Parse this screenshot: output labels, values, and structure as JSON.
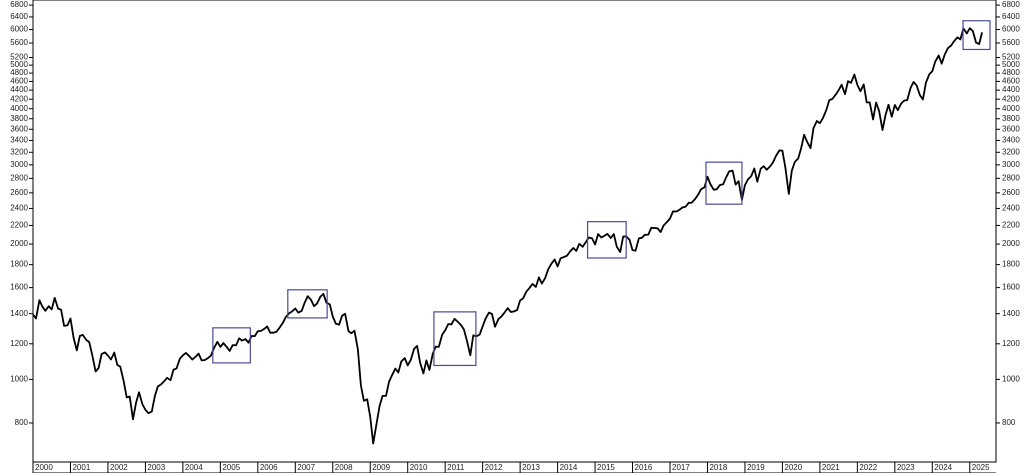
{
  "chart_data": {
    "type": "line",
    "log_y": true,
    "color": "#000000",
    "highlight_color": "#4a4a9a",
    "x": [
      2000.0,
      2000.08,
      2000.17,
      2000.25,
      2000.33,
      2000.42,
      2000.5,
      2000.58,
      2000.67,
      2000.75,
      2000.83,
      2000.92,
      2001.0,
      2001.08,
      2001.17,
      2001.25,
      2001.33,
      2001.42,
      2001.5,
      2001.58,
      2001.67,
      2001.75,
      2001.83,
      2001.92,
      2002.0,
      2002.08,
      2002.17,
      2002.25,
      2002.33,
      2002.42,
      2002.5,
      2002.58,
      2002.67,
      2002.75,
      2002.83,
      2002.92,
      2003.0,
      2003.08,
      2003.17,
      2003.25,
      2003.33,
      2003.42,
      2003.5,
      2003.58,
      2003.67,
      2003.75,
      2003.83,
      2003.92,
      2004.0,
      2004.08,
      2004.17,
      2004.25,
      2004.33,
      2004.42,
      2004.5,
      2004.58,
      2004.67,
      2004.75,
      2004.83,
      2004.92,
      2005.0,
      2005.08,
      2005.17,
      2005.25,
      2005.33,
      2005.42,
      2005.5,
      2005.58,
      2005.67,
      2005.75,
      2005.83,
      2005.92,
      2006.0,
      2006.08,
      2006.17,
      2006.25,
      2006.33,
      2006.42,
      2006.5,
      2006.58,
      2006.67,
      2006.75,
      2006.83,
      2006.92,
      2007.0,
      2007.08,
      2007.17,
      2007.25,
      2007.33,
      2007.42,
      2007.5,
      2007.58,
      2007.67,
      2007.75,
      2007.83,
      2007.92,
      2008.0,
      2008.08,
      2008.17,
      2008.25,
      2008.33,
      2008.42,
      2008.5,
      2008.58,
      2008.67,
      2008.75,
      2008.83,
      2008.92,
      2009.0,
      2009.08,
      2009.17,
      2009.25,
      2009.33,
      2009.42,
      2009.5,
      2009.58,
      2009.67,
      2009.75,
      2009.83,
      2009.92,
      2010.0,
      2010.08,
      2010.17,
      2010.25,
      2010.33,
      2010.42,
      2010.5,
      2010.58,
      2010.67,
      2010.75,
      2010.83,
      2010.92,
      2011.0,
      2011.08,
      2011.17,
      2011.25,
      2011.33,
      2011.42,
      2011.5,
      2011.58,
      2011.67,
      2011.75,
      2011.83,
      2011.92,
      2012.0,
      2012.08,
      2012.17,
      2012.25,
      2012.33,
      2012.42,
      2012.5,
      2012.58,
      2012.67,
      2012.75,
      2012.83,
      2012.92,
      2013.0,
      2013.08,
      2013.17,
      2013.25,
      2013.33,
      2013.42,
      2013.5,
      2013.58,
      2013.67,
      2013.75,
      2013.83,
      2013.92,
      2014.0,
      2014.08,
      2014.17,
      2014.25,
      2014.33,
      2014.42,
      2014.5,
      2014.58,
      2014.67,
      2014.75,
      2014.83,
      2014.92,
      2015.0,
      2015.08,
      2015.17,
      2015.25,
      2015.33,
      2015.42,
      2015.5,
      2015.58,
      2015.67,
      2015.75,
      2015.83,
      2015.92,
      2016.0,
      2016.08,
      2016.17,
      2016.25,
      2016.33,
      2016.42,
      2016.5,
      2016.58,
      2016.67,
      2016.75,
      2016.83,
      2016.92,
      2017.0,
      2017.08,
      2017.17,
      2017.25,
      2017.33,
      2017.42,
      2017.5,
      2017.58,
      2017.67,
      2017.75,
      2017.83,
      2017.92,
      2018.0,
      2018.08,
      2018.17,
      2018.25,
      2018.33,
      2018.42,
      2018.5,
      2018.58,
      2018.67,
      2018.75,
      2018.83,
      2018.92,
      2019.0,
      2019.08,
      2019.17,
      2019.25,
      2019.33,
      2019.42,
      2019.5,
      2019.58,
      2019.67,
      2019.75,
      2019.83,
      2019.92,
      2020.0,
      2020.08,
      2020.17,
      2020.25,
      2020.33,
      2020.42,
      2020.5,
      2020.58,
      2020.67,
      2020.75,
      2020.83,
      2020.92,
      2021.0,
      2021.08,
      2021.17,
      2021.25,
      2021.33,
      2021.42,
      2021.5,
      2021.58,
      2021.67,
      2021.75,
      2021.83,
      2021.92,
      2022.0,
      2022.08,
      2022.17,
      2022.25,
      2022.33,
      2022.42,
      2022.5,
      2022.58,
      2022.67,
      2022.75,
      2022.83,
      2022.92,
      2023.0,
      2023.08,
      2023.17,
      2023.25,
      2023.33,
      2023.42,
      2023.5,
      2023.58,
      2023.67,
      2023.75,
      2023.83,
      2023.92,
      2024.0,
      2024.08,
      2024.17,
      2024.25,
      2024.33,
      2024.42,
      2024.5,
      2024.58,
      2024.67,
      2024.75,
      2024.83,
      2024.92,
      2025.0,
      2025.08,
      2025.17,
      2025.25,
      2025.33
    ],
    "values": [
      1394,
      1366,
      1499,
      1452,
      1421,
      1455,
      1431,
      1518,
      1437,
      1429,
      1315,
      1320,
      1366,
      1240,
      1160,
      1249,
      1256,
      1224,
      1211,
      1134,
      1041,
      1060,
      1139,
      1148,
      1130,
      1107,
      1147,
      1077,
      1067,
      990,
      912,
      916,
      815,
      886,
      936,
      880,
      856,
      841,
      848,
      917,
      964,
      975,
      990,
      1008,
      996,
      1051,
      1058,
      1112,
      1131,
      1145,
      1126,
      1107,
      1121,
      1141,
      1102,
      1104,
      1115,
      1130,
      1174,
      1212,
      1181,
      1204,
      1181,
      1157,
      1192,
      1191,
      1234,
      1220,
      1229,
      1207,
      1249,
      1248,
      1280,
      1281,
      1295,
      1311,
      1270,
      1270,
      1277,
      1304,
      1336,
      1378,
      1401,
      1418,
      1438,
      1407,
      1421,
      1482,
      1531,
      1503,
      1455,
      1474,
      1527,
      1549,
      1481,
      1468,
      1379,
      1331,
      1323,
      1386,
      1400,
      1280,
      1267,
      1283,
      1165,
      969,
      896,
      903,
      826,
      720,
      798,
      873,
      919,
      919,
      987,
      1021,
      1057,
      1036,
      1096,
      1115,
      1074,
      1104,
      1169,
      1187,
      1089,
      1031,
      1102,
      1049,
      1141,
      1183,
      1181,
      1258,
      1286,
      1327,
      1326,
      1364,
      1345,
      1321,
      1292,
      1219,
      1131,
      1253,
      1247,
      1258,
      1312,
      1366,
      1408,
      1398,
      1310,
      1362,
      1379,
      1407,
      1441,
      1412,
      1416,
      1426,
      1498,
      1515,
      1569,
      1598,
      1631,
      1606,
      1686,
      1633,
      1682,
      1757,
      1806,
      1848,
      1783,
      1859,
      1872,
      1884,
      1924,
      1960,
      1931,
      2003,
      1972,
      2018,
      2068,
      2059,
      1995,
      2105,
      2068,
      2086,
      2107,
      2063,
      2104,
      1972,
      1920,
      2079,
      2080,
      2044,
      1940,
      1932,
      2060,
      2065,
      2097,
      2099,
      2174,
      2171,
      2168,
      2126,
      2199,
      2239,
      2279,
      2364,
      2363,
      2384,
      2412,
      2423,
      2470,
      2472,
      2519,
      2575,
      2648,
      2674,
      2824,
      2714,
      2641,
      2648,
      2705,
      2718,
      2816,
      2902,
      2914,
      2712,
      2760,
      2507,
      2704,
      2784,
      2834,
      2946,
      2752,
      2942,
      2980,
      2926,
      2977,
      3038,
      3141,
      3231,
      3226,
      2954,
      2585,
      2912,
      3044,
      3100,
      3271,
      3500,
      3363,
      3270,
      3622,
      3756,
      3714,
      3811,
      3973,
      4181,
      4204,
      4298,
      4395,
      4523,
      4308,
      4605,
      4567,
      4766,
      4516,
      4374,
      4530,
      4132,
      4132,
      3785,
      4130,
      3955,
      3586,
      3872,
      4080,
      3840,
      4077,
      3970,
      4109,
      4169,
      4180,
      4450,
      4589,
      4508,
      4288,
      4194,
      4568,
      4770,
      4846,
      5096,
      5254,
      5036,
      5278,
      5460,
      5522,
      5648,
      5762,
      5705,
      6032,
      5882,
      6041,
      5955,
      5612,
      5569,
      5912
    ],
    "xlim": [
      2000,
      2025.7
    ],
    "xticks": [
      2000,
      2001,
      2002,
      2003,
      2004,
      2005,
      2006,
      2007,
      2008,
      2009,
      2010,
      2011,
      2012,
      2013,
      2014,
      2015,
      2016,
      2017,
      2018,
      2019,
      2020,
      2021,
      2022,
      2023,
      2024,
      2025
    ],
    "ylim": [
      655,
      6980
    ],
    "yticks": [
      800,
      1000,
      1200,
      1400,
      1600,
      1800,
      2000,
      2200,
      2400,
      2600,
      2800,
      3000,
      3200,
      3400,
      3600,
      3800,
      4000,
      4200,
      4400,
      4600,
      4800,
      5000,
      5200,
      5600,
      6000,
      6400,
      6800
    ],
    "highlights": [
      {
        "xlim": [
          2004.8,
          2005.8
        ],
        "ylim": [
          1088,
          1302
        ]
      },
      {
        "xlim": [
          2006.8,
          2007.85
        ],
        "ylim": [
          1370,
          1582
        ]
      },
      {
        "xlim": [
          2010.7,
          2011.82
        ],
        "ylim": [
          1074,
          1413
        ]
      },
      {
        "xlim": [
          2014.8,
          2015.83
        ],
        "ylim": [
          1862,
          2243
        ]
      },
      {
        "xlim": [
          2017.96,
          2018.92
        ],
        "ylim": [
          2453,
          3042
        ]
      },
      {
        "xlim": [
          2024.82,
          2025.54
        ],
        "ylim": [
          5418,
          6276
        ]
      }
    ]
  }
}
